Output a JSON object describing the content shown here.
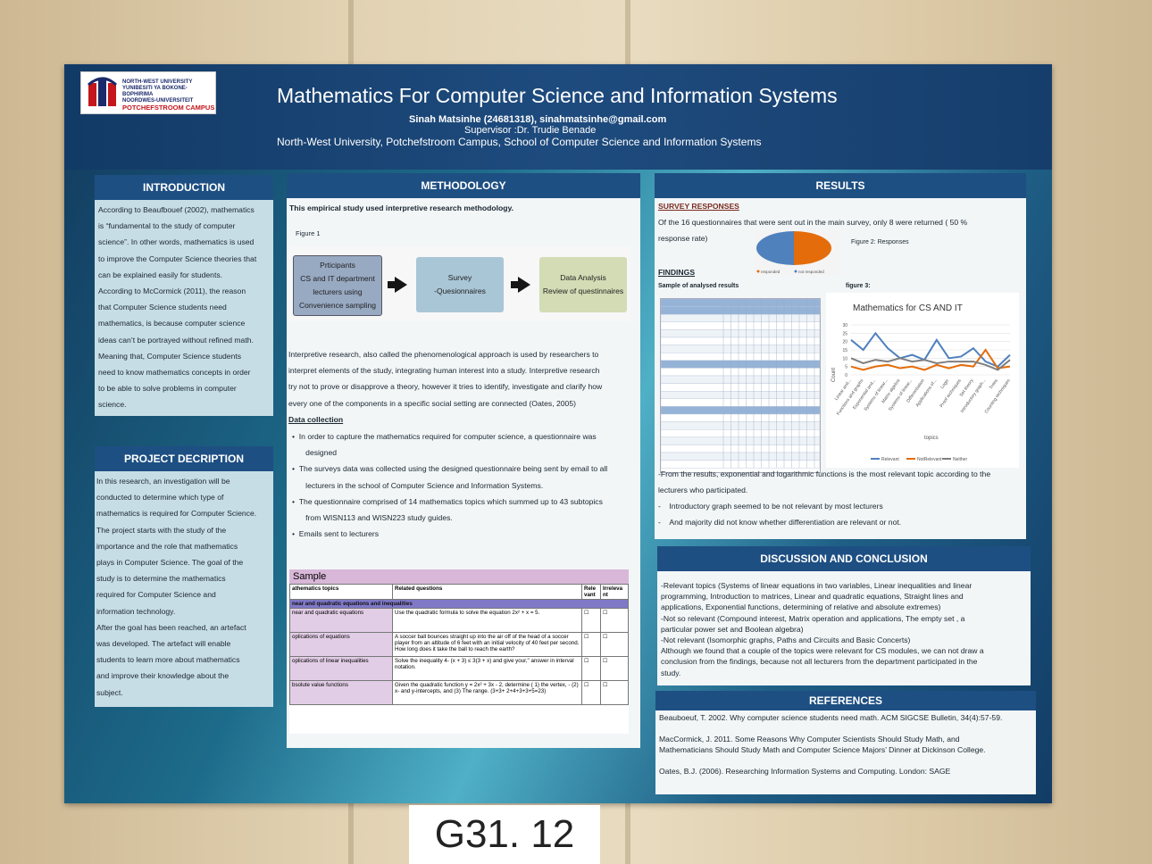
{
  "poster": {
    "logo_lines": [
      "NORTH-WEST UNIVERSITY",
      "YUNIBESITI YA BOKONE-BOPHIRIMA",
      "NOORDWES-UNIVERSITEIT"
    ],
    "logo_campus": "POTCHEFSTROOM CAMPUS",
    "title": "Mathematics For Computer Science and Information Systems",
    "author": "Sinah Matsinhe (24681318), sinahmatsinhe@gmail.com",
    "supervisor": "Supervisor :Dr. Trudie Benade",
    "affiliation": "North-West University, Potchefstroom Campus, School of Computer Science and Information Systems"
  },
  "introduction": {
    "heading": "INTRODUCTION",
    "lines": [
      "According to Beaufbouef (2002), mathematics",
      "is “fundamental to the study of computer",
      "science”. In other words, mathematics is used",
      "to improve the Computer Science theories that",
      "can be explained easily for students.",
      "According to McCormick (2011), the reason",
      "that Computer Science students need",
      "mathematics, is because computer science",
      "ideas can’t be portrayed without refined math.",
      "Meaning that, Computer Science students",
      "need to know mathematics concepts in order",
      "to be able to solve problems in computer",
      "science."
    ]
  },
  "project": {
    "heading": "PROJECT DECRIPTION",
    "lines": [
      "In this research, an investigation will be",
      "conducted to determine which type of",
      "mathematics is required for Computer Science.",
      "The project starts with the study of the",
      "importance and the role that mathematics",
      "plays in Computer Science. The goal of the",
      "study is to determine the mathematics",
      "required for Computer Science and",
      "information technology.",
      "After the goal has been reached, an artefact",
      "was developed. The artefact will enable",
      "students to learn more about mathematics",
      "and improve their knowledge about the",
      "subject."
    ]
  },
  "methodology": {
    "heading": "METHODOLOGY",
    "lead": "This empirical  study used interpretive research methodology.",
    "figure_label": "Figure 1",
    "flow": [
      {
        "lines": [
          "Prticipants",
          "CS and IT department",
          "lecturers using",
          "Convenience sampling"
        ]
      },
      {
        "lines": [
          "Survey",
          "-Quesionnaires"
        ]
      },
      {
        "lines": [
          "Data Analysis",
          "Review of questinnaires"
        ]
      }
    ],
    "body_lines": [
      "Interpretive research, also called the phenomenological approach is used by researchers to",
      "interpret elements of the study, integrating human interest into a study. Interpretive research",
      "try not to prove or disapprove a theory, however it tries to identify, investigate and clarify how",
      "every one of the components in a specific social setting are connected (Oates, 2005)"
    ],
    "data_collection_heading": "Data collection",
    "bullets": [
      [
        "In order to capture the mathematics required for computer science, a questionnaire was",
        "designed"
      ],
      [
        "The surveys data was collected using the designed questionnaire being sent by email to all",
        "lecturers in the school of Computer Science and Information Systems."
      ],
      [
        "The questionnaire comprised of 14 mathematics topics which summed up to 43 subtopics",
        "from WISN113  and WISN223 study guides."
      ],
      [
        "Emails sent to lecturers"
      ]
    ],
    "sample": {
      "title": "Sample",
      "headers": [
        "athematics topics",
        "Related questions",
        "Rele vant",
        "Irreleva nt"
      ],
      "section": "near and quadratic equations and inequalities",
      "rows": [
        {
          "topic": "near and quadratic equations",
          "question": "Use the quadratic formula to solve the equation 2x² + x = 5."
        },
        {
          "topic": "oplications of equations",
          "question": "A soccer ball bounces straight up into the air off of the head of a soccer player from an altitude of 6 feet with an initial velocity of 40 feet per second. How long does it take the ball to reach the earth?"
        },
        {
          "topic": "oplications of linear inequalities",
          "question": "Solve the inequality 4- (x + 3)  ≤ 3(3 + x) and give your,\" answer in interval notation."
        },
        {
          "topic": "bsolute value functions",
          "question": "Given the quadratic function y = 2x² + 3x - 2, determine ( 1) the vertex, - (2) x- and y-intercepts, and (3) The range. (3+3+ 2+4+3+3+5=23)"
        }
      ]
    }
  },
  "results": {
    "heading": "RESULTS",
    "survey_heading": "SURVEY RESPONSES",
    "survey_lines": [
      "Of the 16 questionnaires that were sent out in the main survey, only 8 were returned ( 50 %",
      "response rate)"
    ],
    "figure2_label": "Figure 2: Responses",
    "pie_legend": [
      "responded",
      "not responded"
    ],
    "pie_values": [
      50,
      50
    ],
    "findings_heading": "FINDINGS",
    "sample_label": "Sample of analysed results",
    "figure3_label": "figure 3:",
    "chart": {
      "title": "Mathematics for CS AND IT",
      "ylabel": "Count",
      "xlabel": "topics",
      "yticks": [
        "0",
        "5",
        "10",
        "15",
        "20",
        "25",
        "30"
      ],
      "categories": [
        "Linear and...",
        "Functions and graphs",
        "Exponential and...",
        "Systems of linear...",
        "Matrix algebra",
        "Systems of linear...",
        "Differentiation",
        "Applications of...",
        "Logic",
        "Proof techniques",
        "Set theory",
        "Introductory graph...",
        "Trees",
        "Counting techniques"
      ],
      "series": [
        {
          "name": "Relevant",
          "color": "#4f81bd",
          "values": [
            21,
            15,
            25,
            16,
            10,
            12,
            9,
            21,
            10,
            11,
            16,
            8,
            5,
            12
          ]
        },
        {
          "name": "NotRelevant",
          "color": "#e46c0a",
          "values": [
            5,
            3,
            5,
            6,
            4,
            5,
            3,
            6,
            4,
            6,
            5,
            15,
            4,
            5
          ]
        },
        {
          "name": "Neither",
          "color": "#7f7f7f",
          "values": [
            10,
            7,
            9,
            8,
            10,
            8,
            9,
            7,
            8,
            8,
            8,
            6,
            3,
            9
          ]
        }
      ]
    },
    "conclusion_lines": [
      "-From the results, exponential and logarithmic functions is the most relevant topic according to the",
      "lecturers who participated."
    ],
    "conclusion_bullets": [
      "Introductory graph seemed to be not relevant by most lecturers",
      "And  majority did not know whether differentiation are relevant or not."
    ]
  },
  "discussion": {
    "heading": "DISCUSSION AND CONCLUSION",
    "lines": [
      "-Relevant topics (Systems  of linear equations in two variables, Linear inequalities and linear",
      "programming, Introduction to matrices, Linear and quadratic equations, Straight lines and",
      "applications, Exponential functions, determining of relative and absolute extremes)",
      "-Not so relevant (Compound interest, Matrix operation and applications, The empty set , a",
      "particular power set and Boolean algebra)",
      "-Not relevant (Isomorphic graphs, Paths and Circuits and Basic Concerts)",
      "Although we found that a couple of the topics were relevant for CS modules, we can not draw a",
      "conclusion from the findings, because not all lecturers from the department participated in the",
      "study."
    ]
  },
  "references": {
    "heading": "REFERENCES",
    "items": [
      [
        "Beauboeuf, T.  2002.  Why computer science students need math.  ACM SIGCSE Bulletin, 34(4):57-59."
      ],
      [
        "MacCormick, J.  2011.  Some Reasons Why Computer Scientists Should Study Math, and",
        "Mathematicians Should Study Math and Computer Science Majors’ Dinner at Dickinson College."
      ],
      [
        "Oates, B.J. (2006). Researching Information Systems and Computing. London: SAGE"
      ]
    ]
  },
  "wall_label": "G31. 12"
}
